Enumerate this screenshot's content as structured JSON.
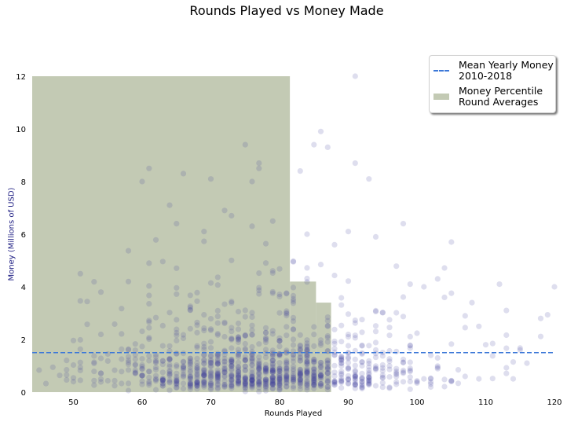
{
  "chart_data": {
    "type": "scatter",
    "title": "Rounds Played vs Money Made",
    "xlabel": "Rounds Played",
    "ylabel": "Money (Millions of USD)",
    "xlim": [
      44,
      120
    ],
    "ylim": [
      0,
      12
    ],
    "xticks": [
      "50",
      "60",
      "70",
      "80",
      "90",
      "100",
      "110",
      "120"
    ],
    "yticks": [
      "0",
      "2",
      "4",
      "6",
      "8",
      "10",
      "12"
    ],
    "grid": false,
    "legend_position": "top-right",
    "colors": {
      "points": "#3a3a9a",
      "mean_line": "#3c78d8",
      "percentile_fill": "#c3cab4"
    },
    "mean_line": {
      "label": "Mean Yearly Money\n2010-2018",
      "value": 1.5
    },
    "percentile_steps": {
      "label": "Money Percentile\nRound Averages",
      "steps": [
        {
          "x_start": 44,
          "x_end": 81.5,
          "value": 12.0
        },
        {
          "x_start": 81.5,
          "x_end": 85.3,
          "value": 4.2
        },
        {
          "x_start": 85.3,
          "x_end": 87.5,
          "value": 3.4
        }
      ]
    },
    "highlighted_points": [
      [
        91,
        12.0
      ],
      [
        86,
        9.9
      ],
      [
        85,
        9.4
      ],
      [
        87,
        9.3
      ],
      [
        75,
        9.4
      ],
      [
        77,
        8.7
      ],
      [
        77,
        8.5
      ],
      [
        91,
        8.7
      ],
      [
        61,
        8.5
      ],
      [
        66,
        8.3
      ],
      [
        70,
        8.1
      ],
      [
        93,
        8.1
      ],
      [
        76,
        8.0
      ],
      [
        60,
        8.0
      ],
      [
        83,
        8.4
      ],
      [
        64,
        7.1
      ],
      [
        72,
        6.9
      ],
      [
        73,
        6.7
      ],
      [
        65,
        6.4
      ],
      [
        79,
        6.5
      ],
      [
        76,
        6.3
      ],
      [
        90,
        6.1
      ],
      [
        84,
        6.0
      ],
      [
        98,
        6.4
      ],
      [
        69,
        6.1
      ],
      [
        94,
        5.9
      ],
      [
        88,
        5.6
      ],
      [
        105,
        5.7
      ],
      [
        120,
        4.0
      ],
      [
        112,
        4.1
      ],
      [
        61,
        4.9
      ],
      [
        51,
        4.5
      ],
      [
        54,
        3.8
      ],
      [
        58,
        4.2
      ],
      [
        99,
        4.1
      ],
      [
        108,
        3.4
      ],
      [
        113,
        3.1
      ],
      [
        115,
        1.6
      ],
      [
        116,
        1.1
      ],
      [
        118,
        2.8
      ],
      [
        110,
        1.8
      ],
      [
        101,
        4.0
      ],
      [
        103,
        4.3
      ],
      [
        104,
        3.6
      ],
      [
        107,
        2.9
      ],
      [
        109,
        2.5
      ]
    ],
    "cloud_seed": 7,
    "cloud_count": 1100
  }
}
